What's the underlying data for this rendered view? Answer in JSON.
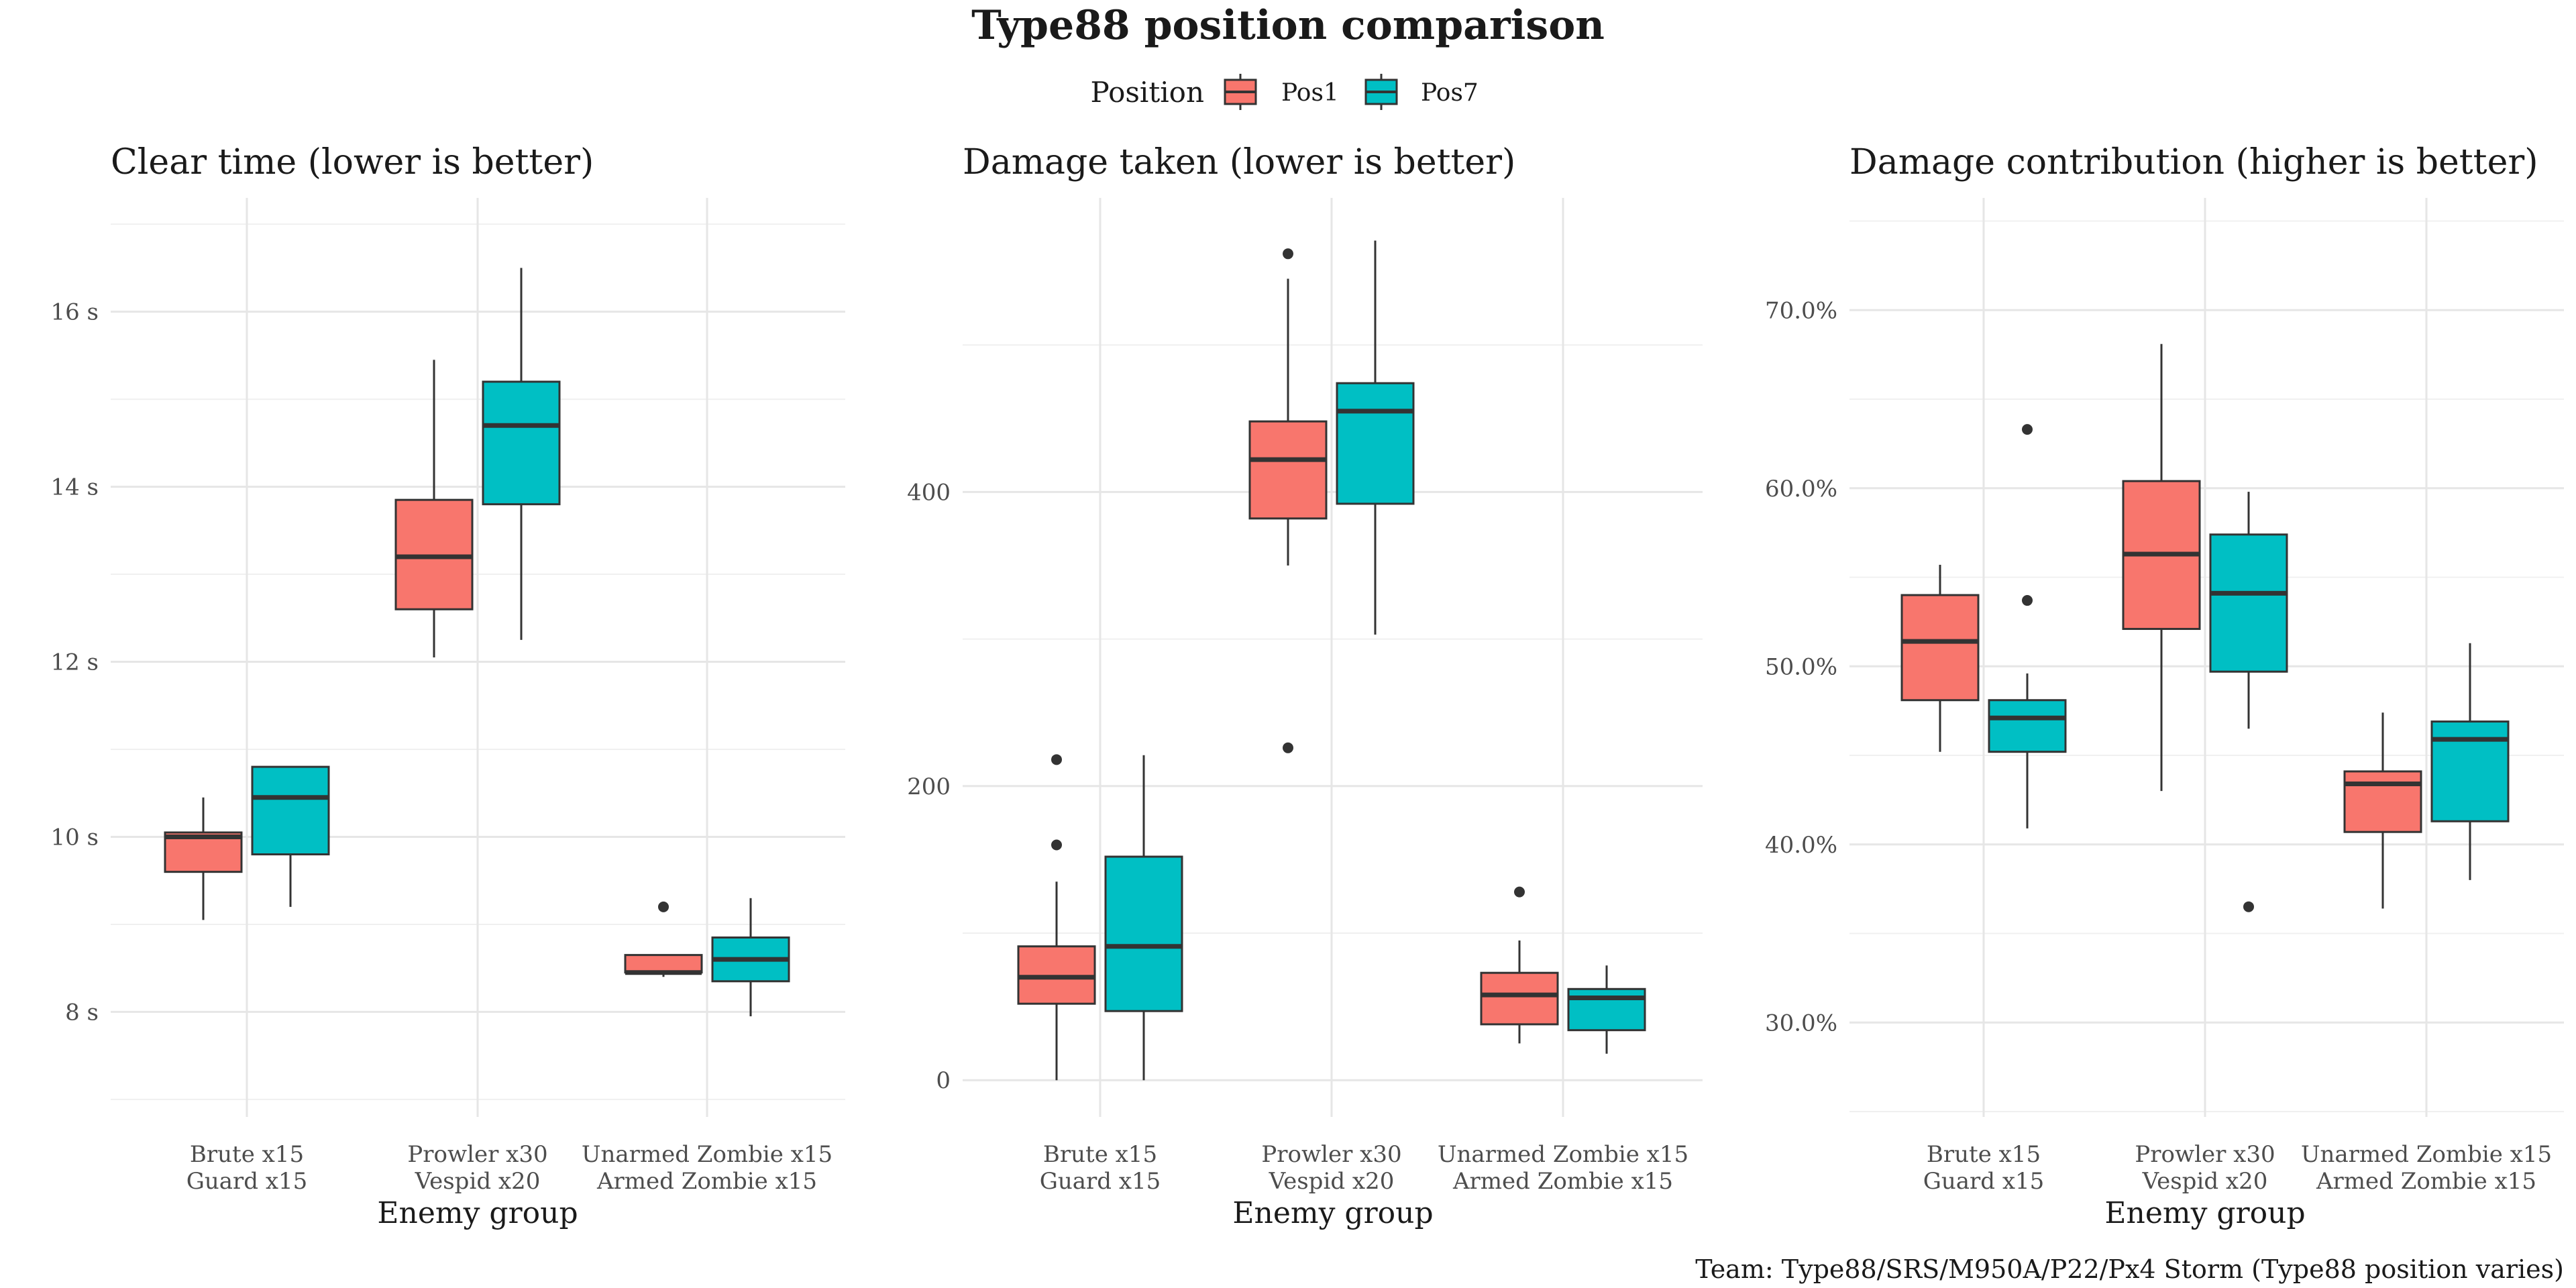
{
  "title": "Type88 position comparison",
  "caption": "Team: Type88/SRS/M950A/P22/Px4 Storm (Type88 position varies)",
  "legend": {
    "title": "Position",
    "items": [
      {
        "label": "Pos1",
        "color": "#F8766D"
      },
      {
        "label": "Pos7",
        "color": "#00BFC4"
      }
    ],
    "placement": "top-center"
  },
  "chart_data": [
    {
      "type": "box",
      "title": "Clear time (lower is better)",
      "xlabel": "Enemy group",
      "ylabel": "",
      "categories": [
        [
          "Brute x15",
          "Guard x15"
        ],
        [
          "Prowler x30",
          "Vespid x20"
        ],
        [
          "Unarmed Zombie x15",
          "Armed Zombie x15"
        ]
      ],
      "ylim": [
        6.8,
        17.3
      ],
      "yticks": [
        8,
        10,
        12,
        14,
        16
      ],
      "yticklabels": [
        "8 s",
        "10 s",
        "12 s",
        "14 s",
        "16 s"
      ],
      "yminor": [
        7,
        9,
        11,
        13,
        15,
        17
      ],
      "series": [
        {
          "name": "Pos1",
          "boxes": [
            {
              "min": 9.05,
              "q1": 9.6,
              "median": 10.0,
              "q3": 10.05,
              "max": 10.45,
              "outliers": []
            },
            {
              "min": 12.05,
              "q1": 12.6,
              "median": 13.2,
              "q3": 13.85,
              "max": 15.45,
              "outliers": []
            },
            {
              "min": 8.4,
              "q1": 8.45,
              "median": 8.45,
              "q3": 8.65,
              "max": 8.65,
              "outliers": [
                9.2
              ]
            }
          ]
        },
        {
          "name": "Pos7",
          "boxes": [
            {
              "min": 9.2,
              "q1": 9.8,
              "median": 10.45,
              "q3": 10.8,
              "max": 10.8,
              "outliers": []
            },
            {
              "min": 12.25,
              "q1": 13.8,
              "median": 14.7,
              "q3": 15.2,
              "max": 16.5,
              "outliers": []
            },
            {
              "min": 7.95,
              "q1": 8.35,
              "median": 8.6,
              "q3": 8.85,
              "max": 9.3,
              "outliers": []
            }
          ]
        }
      ]
    },
    {
      "type": "box",
      "title": "Damage taken (lower is better)",
      "xlabel": "Enemy group",
      "ylabel": "",
      "categories": [
        [
          "Brute x15",
          "Guard x15"
        ],
        [
          "Prowler x30",
          "Vespid x20"
        ],
        [
          "Unarmed Zombie x15",
          "Armed Zombie x15"
        ]
      ],
      "ylim": [
        -25,
        600
      ],
      "yticks": [
        0,
        200,
        400
      ],
      "yticklabels": [
        "0",
        "200",
        "400"
      ],
      "yminor": [
        100,
        300,
        500
      ],
      "series": [
        {
          "name": "Pos1",
          "boxes": [
            {
              "min": 0,
              "q1": 52,
              "median": 70,
              "q3": 91,
              "max": 135,
              "outliers": [
                160,
                218
              ]
            },
            {
              "min": 350,
              "q1": 382,
              "median": 422,
              "q3": 448,
              "max": 545,
              "outliers": [
                226,
                562
              ]
            },
            {
              "min": 25,
              "q1": 38,
              "median": 58,
              "q3": 73,
              "max": 95,
              "outliers": [
                128
              ]
            }
          ]
        },
        {
          "name": "Pos7",
          "boxes": [
            {
              "min": 0,
              "q1": 47,
              "median": 91,
              "q3": 152,
              "max": 221,
              "outliers": []
            },
            {
              "min": 303,
              "q1": 392,
              "median": 455,
              "q3": 474,
              "max": 571,
              "outliers": []
            },
            {
              "min": 18,
              "q1": 34,
              "median": 56,
              "q3": 62,
              "max": 78,
              "outliers": []
            }
          ]
        }
      ]
    },
    {
      "type": "box",
      "title": "Damage contribution (higher is better)",
      "xlabel": "Enemy group",
      "ylabel": "",
      "categories": [
        [
          "Brute x15",
          "Guard x15"
        ],
        [
          "Prowler x30",
          "Vespid x20"
        ],
        [
          "Unarmed Zombie x15",
          "Armed Zombie x15"
        ]
      ],
      "ylim": [
        24.7,
        76.3
      ],
      "yticks": [
        30,
        40,
        50,
        60,
        70
      ],
      "yticklabels": [
        "30.0%",
        "40.0%",
        "50.0%",
        "60.0%",
        "70.0%"
      ],
      "yminor": [
        25,
        35,
        45,
        55,
        65,
        75
      ],
      "series": [
        {
          "name": "Pos1",
          "boxes": [
            {
              "min": 45.2,
              "q1": 48.1,
              "median": 51.4,
              "q3": 54.0,
              "max": 55.7,
              "outliers": []
            },
            {
              "min": 43.0,
              "q1": 52.1,
              "median": 56.3,
              "q3": 60.4,
              "max": 68.1,
              "outliers": []
            },
            {
              "min": 36.4,
              "q1": 40.7,
              "median": 43.4,
              "q3": 44.1,
              "max": 47.4,
              "outliers": []
            }
          ]
        },
        {
          "name": "Pos7",
          "boxes": [
            {
              "min": 40.9,
              "q1": 45.2,
              "median": 47.1,
              "q3": 48.1,
              "max": 49.6,
              "outliers": [
                53.7,
                63.3
              ]
            },
            {
              "min": 46.5,
              "q1": 49.7,
              "median": 54.1,
              "q3": 57.4,
              "max": 59.8,
              "outliers": [
                36.5
              ]
            },
            {
              "min": 38.0,
              "q1": 41.3,
              "median": 45.9,
              "q3": 46.9,
              "max": 51.3,
              "outliers": []
            }
          ]
        }
      ]
    }
  ]
}
